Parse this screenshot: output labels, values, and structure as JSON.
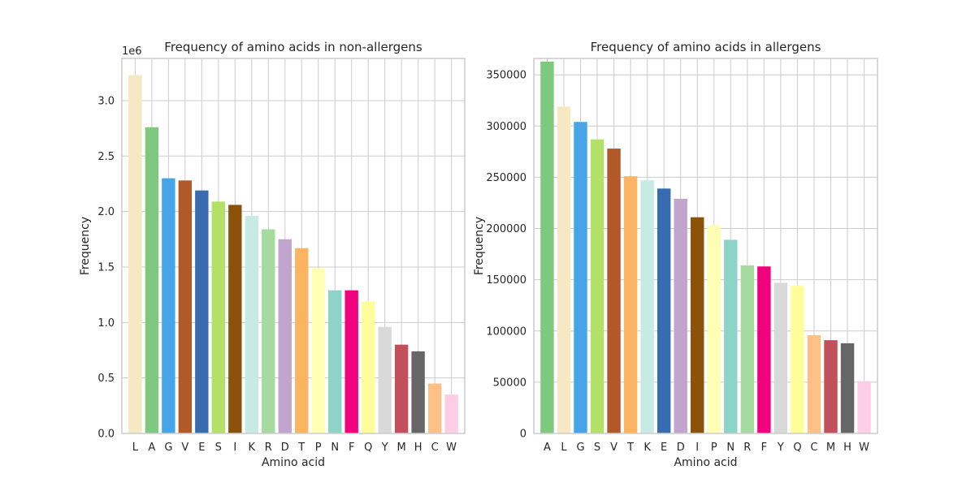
{
  "chart_data": [
    {
      "type": "bar",
      "title": "Frequency of amino acids in non-allergens",
      "xlabel": "Amino acid",
      "ylabel": "Frequency",
      "offset_label": "1e6",
      "ylim": [
        0,
        3.38
      ],
      "yticks": [
        0.0,
        0.5,
        1.0,
        1.5,
        2.0,
        2.5,
        3.0
      ],
      "ytick_labels": [
        "0.0",
        "0.5",
        "1.0",
        "1.5",
        "2.0",
        "2.5",
        "3.0"
      ],
      "grid": true,
      "categories": [
        "L",
        "A",
        "G",
        "V",
        "E",
        "S",
        "I",
        "K",
        "R",
        "D",
        "T",
        "P",
        "N",
        "F",
        "Q",
        "Y",
        "M",
        "H",
        "C",
        "W"
      ],
      "values": [
        3.23,
        2.76,
        2.3,
        2.28,
        2.19,
        2.09,
        2.06,
        1.96,
        1.84,
        1.75,
        1.67,
        1.49,
        1.29,
        1.29,
        1.19,
        0.96,
        0.8,
        0.74,
        0.45,
        0.35
      ],
      "colors": [
        "#f6e8c3",
        "#7fc97f",
        "#45a5e6",
        "#b15928",
        "#386cb0",
        "#b3e066",
        "#8c510a",
        "#c7eae5",
        "#a6dba0",
        "#c2a5cf",
        "#fdb462",
        "#ffffb3",
        "#8dd3c7",
        "#f0027f",
        "#ffff99",
        "#d9d9d9",
        "#c2505a",
        "#666666",
        "#fdc086",
        "#fccde5"
      ]
    },
    {
      "type": "bar",
      "title": "Frequency of amino acids in allergens",
      "xlabel": "Amino acid",
      "ylabel": "Frequency",
      "ylim": [
        0,
        366000
      ],
      "yticks": [
        0,
        50000,
        100000,
        150000,
        200000,
        250000,
        300000,
        350000
      ],
      "ytick_labels": [
        "0",
        "50000",
        "100000",
        "150000",
        "200000",
        "250000",
        "300000",
        "350000"
      ],
      "grid": true,
      "categories": [
        "A",
        "L",
        "G",
        "S",
        "V",
        "T",
        "K",
        "E",
        "D",
        "I",
        "P",
        "N",
        "R",
        "F",
        "Y",
        "Q",
        "C",
        "M",
        "H",
        "W"
      ],
      "values": [
        363000,
        319000,
        304000,
        287000,
        278000,
        251000,
        247000,
        239000,
        229000,
        211000,
        203000,
        189000,
        164000,
        163000,
        147000,
        144000,
        96000,
        91000,
        88000,
        51000
      ],
      "colors": [
        "#7fc97f",
        "#f6e8c3",
        "#45a5e6",
        "#b3e066",
        "#b15928",
        "#fdb462",
        "#c7eae5",
        "#386cb0",
        "#c2a5cf",
        "#8c510a",
        "#ffffb3",
        "#8dd3c7",
        "#a6dba0",
        "#f0027f",
        "#d9d9d9",
        "#ffff99",
        "#fdc086",
        "#c2505a",
        "#666666",
        "#fccde5"
      ]
    }
  ]
}
